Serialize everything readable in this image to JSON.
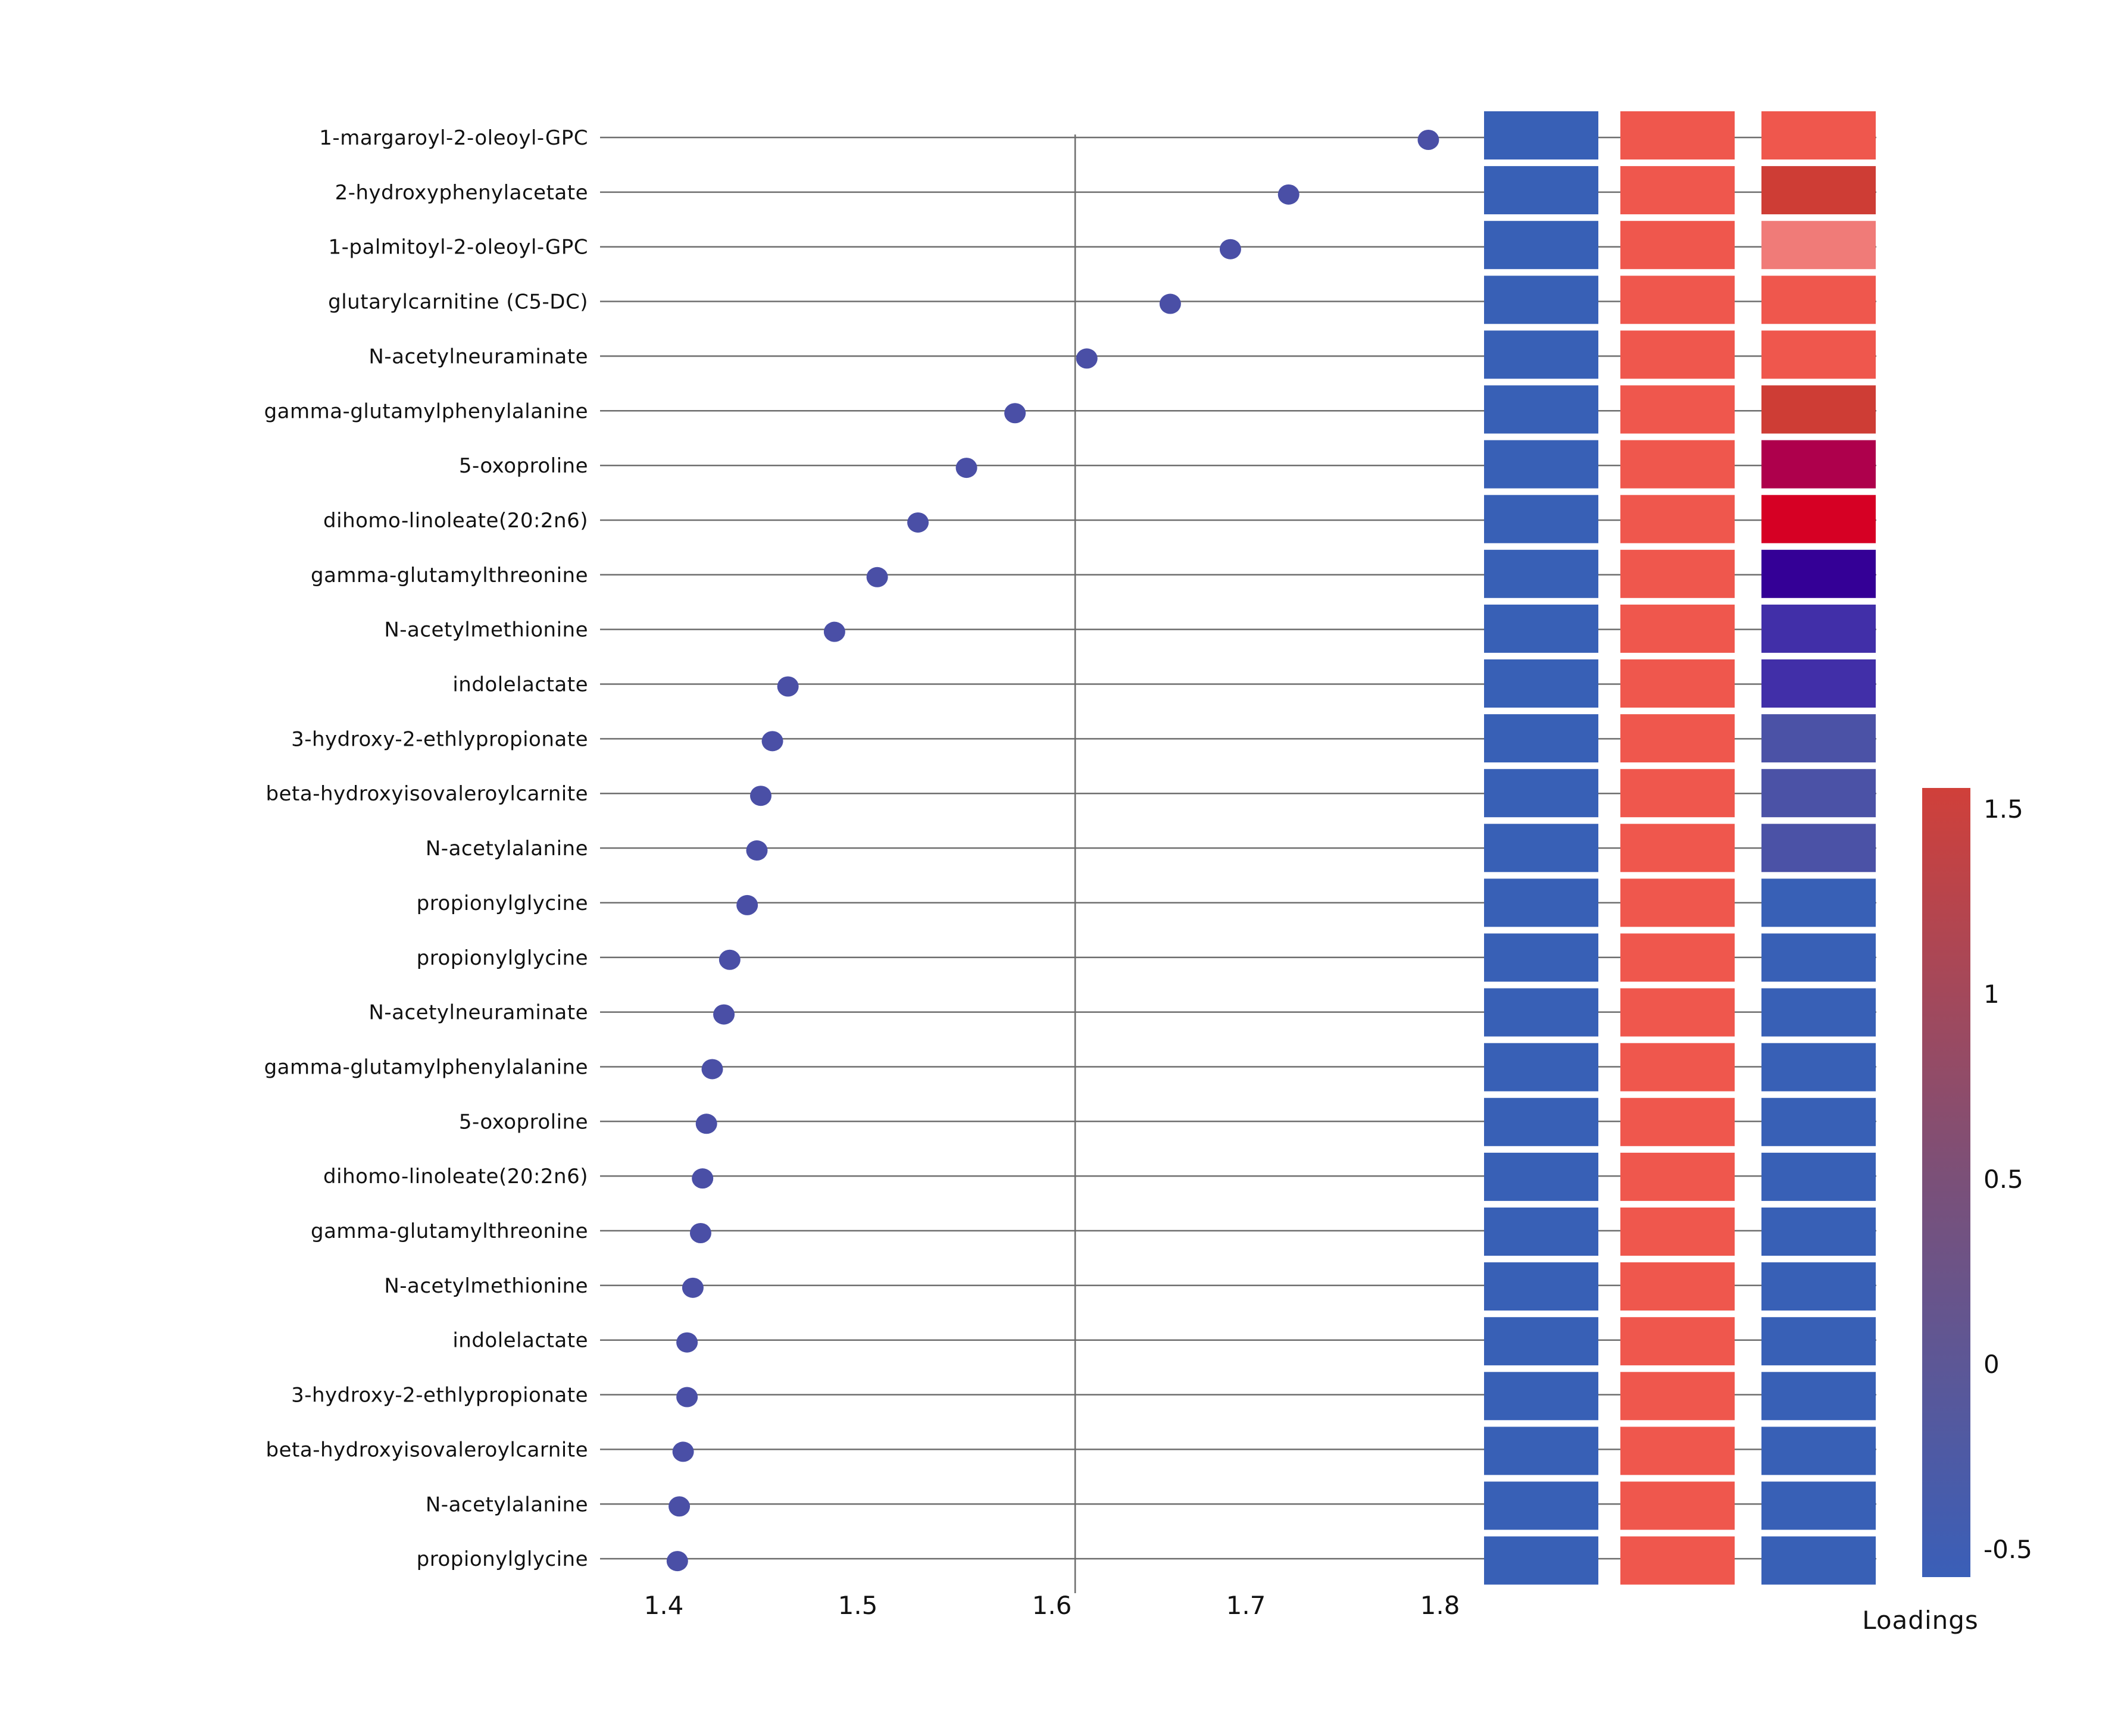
{
  "chart_data": {
    "type": "scatter",
    "subtype": "dot-plot-with-heatmap",
    "title": "",
    "xlabel": "",
    "ylabel": "",
    "xlim": [
      1.4,
      1.8
    ],
    "x_ticks": [
      "1.4",
      "1.5",
      "1.6",
      "1.7",
      "1.8"
    ],
    "x_tick_values": [
      1.4,
      1.5,
      1.6,
      1.7,
      1.8
    ],
    "reference_line_x": 1.612,
    "grid": "horizontal lines per row",
    "marker_color": "#4A4FA6",
    "categories": [
      "1-margaroyl-2-oleoyl-GPC",
      "2-hydroxyphenylacetate",
      "1-palmitoyl-2-oleoyl-GPC",
      "glutarylcarnitine (C5-DC)",
      "N-acetylneuraminate",
      "gamma-glutamylphenylalanine",
      "5-oxoproline",
      "dihomo-linoleate(20:2n6)",
      "gamma-glutamylthreonine",
      "N-acetylmethionine",
      "indolelactate",
      "3-hydroxy-2-ethlypropionate",
      "beta-hydroxyisovaleroylcarnite",
      "N-acetylalanine",
      "propionylglycine",
      "propionylglycine",
      "N-acetylneuraminate",
      "gamma-glutamylphenylalanine",
      "5-oxoproline",
      "dihomo-linoleate(20:2n6)",
      "gamma-glutamylthreonine",
      "N-acetylmethionine",
      "indolelactate",
      "3-hydroxy-2-ethlypropionate",
      "beta-hydroxyisovaleroylcarnite",
      "N-acetylalanine",
      "propionylglycine"
    ],
    "values": [
      1.794,
      1.722,
      1.692,
      1.661,
      1.618,
      1.581,
      1.556,
      1.531,
      1.51,
      1.488,
      1.464,
      1.456,
      1.45,
      1.448,
      1.443,
      1.434,
      1.431,
      1.425,
      1.422,
      1.42,
      1.419,
      1.415,
      1.412,
      1.412,
      1.41,
      1.408,
      1.407
    ],
    "heatmap": {
      "columns": 3,
      "cell_colors": [
        [
          "#3860B6",
          "#EF574D",
          "#EF574D"
        ],
        [
          "#3860B6",
          "#EF574D",
          "#CE3D35"
        ],
        [
          "#3860B6",
          "#EF574D",
          "#F07B78"
        ],
        [
          "#3860B6",
          "#EF574D",
          "#EF574D"
        ],
        [
          "#3860B6",
          "#EF574D",
          "#EF574D"
        ],
        [
          "#3860B6",
          "#EF574D",
          "#CE3D35"
        ],
        [
          "#3860B6",
          "#EF574D",
          "#AE004C"
        ],
        [
          "#3860B6",
          "#EF574D",
          "#D60024"
        ],
        [
          "#3860B6",
          "#EF574D",
          "#340096"
        ],
        [
          "#3860B6",
          "#EF574D",
          "#412FA8"
        ],
        [
          "#3860B6",
          "#EF574D",
          "#412FA8"
        ],
        [
          "#3860B6",
          "#EF574D",
          "#4B52A6"
        ],
        [
          "#3860B6",
          "#EF574D",
          "#4B52A6"
        ],
        [
          "#3860B6",
          "#EF574D",
          "#4B52A6"
        ],
        [
          "#3860B6",
          "#EF574D",
          "#3860B6"
        ],
        [
          "#3860B6",
          "#EF574D",
          "#3860B6"
        ],
        [
          "#3860B6",
          "#EF574D",
          "#3860B6"
        ],
        [
          "#3860B6",
          "#EF574D",
          "#3860B6"
        ],
        [
          "#3860B6",
          "#EF574D",
          "#3860B6"
        ],
        [
          "#3860B6",
          "#EF574D",
          "#3860B6"
        ],
        [
          "#3860B6",
          "#EF574D",
          "#3860B6"
        ],
        [
          "#3860B6",
          "#EF574D",
          "#3860B6"
        ],
        [
          "#3860B6",
          "#EF574D",
          "#3860B6"
        ],
        [
          "#3860B6",
          "#EF574D",
          "#3860B6"
        ],
        [
          "#3860B6",
          "#EF574D",
          "#3860B6"
        ],
        [
          "#3860B6",
          "#EF574D",
          "#3860B6"
        ],
        [
          "#3860B6",
          "#EF574D",
          "#3860B6"
        ]
      ]
    },
    "colorbar": {
      "title": "Loadings",
      "range": [
        -0.5,
        1.5
      ],
      "ticks": [
        "1.5",
        "1",
        "0.5",
        "0",
        "-0.5"
      ],
      "tick_values": [
        1.5,
        1.0,
        0.5,
        0.0,
        -0.5
      ],
      "color_low": "#3A5FB8",
      "color_mid": "#7A5079",
      "color_high": "#D0403A"
    }
  }
}
